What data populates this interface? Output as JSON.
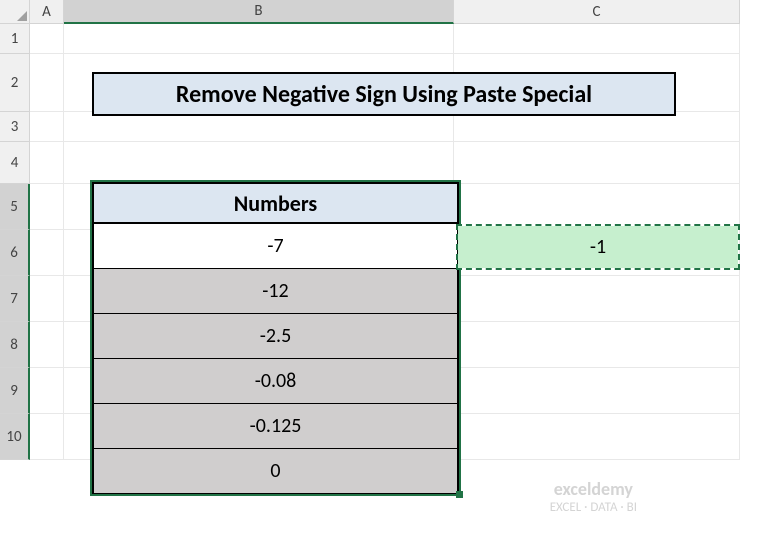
{
  "columns": [
    "A",
    "B",
    "C"
  ],
  "rows": [
    "1",
    "2",
    "3",
    "4",
    "5",
    "6",
    "7",
    "8",
    "9",
    "10"
  ],
  "title": "Remove Negative Sign Using Paste Special",
  "table": {
    "header": "Numbers",
    "values": [
      "-7",
      "-12",
      "-2.5",
      "-0.08",
      "-0.125",
      "0"
    ]
  },
  "copy_value": "-1",
  "watermark": {
    "brand": "exceldemy",
    "tagline": "EXCEL · DATA · BI"
  },
  "colors": {
    "selection_green": "#217346",
    "header_blue": "#dce6f1",
    "copy_green": "#c6efce",
    "selected_gray": "#d0cece"
  }
}
